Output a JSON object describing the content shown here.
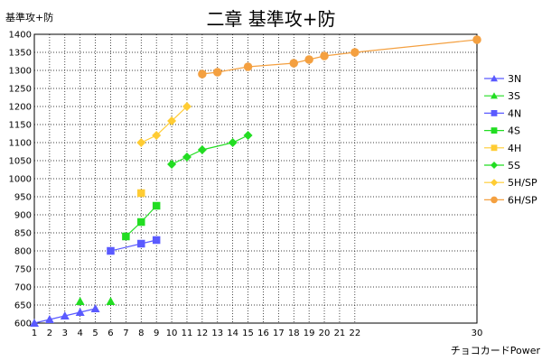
{
  "chart_data": {
    "type": "scatter",
    "title": "二章 基準攻+防",
    "ylabel": "基準攻+防",
    "xlabel": "チョコカードPower",
    "ylim": [
      600,
      1400
    ],
    "y_step": 50,
    "x_ticks": [
      1,
      2,
      3,
      4,
      5,
      6,
      7,
      8,
      9,
      10,
      11,
      12,
      13,
      14,
      15,
      16,
      17,
      18,
      19,
      20,
      21,
      22,
      30
    ],
    "grid": true,
    "legend_position": "right",
    "series": [
      {
        "name": "3N",
        "color": "#5a5aff",
        "marker": "triangle",
        "line": true,
        "points": [
          [
            1,
            600
          ],
          [
            2,
            610
          ],
          [
            3,
            620
          ],
          [
            4,
            630
          ],
          [
            5,
            640
          ]
        ]
      },
      {
        "name": "3S",
        "color": "#22dd22",
        "marker": "triangle",
        "line": false,
        "points": [
          [
            4,
            660
          ],
          [
            6,
            660
          ]
        ]
      },
      {
        "name": "4N",
        "color": "#5a5aff",
        "marker": "square",
        "line": true,
        "points": [
          [
            6,
            800
          ],
          [
            8,
            820
          ],
          [
            9,
            830
          ]
        ]
      },
      {
        "name": "4S",
        "color": "#22dd22",
        "marker": "square",
        "line": true,
        "points": [
          [
            7,
            840
          ],
          [
            8,
            880
          ],
          [
            9,
            925
          ]
        ]
      },
      {
        "name": "4H",
        "color": "#ffcc33",
        "marker": "square",
        "line": false,
        "points": [
          [
            8,
            960
          ]
        ]
      },
      {
        "name": "5S",
        "color": "#22dd22",
        "marker": "diamond",
        "line": true,
        "points": [
          [
            10,
            1040
          ],
          [
            11,
            1060
          ],
          [
            12,
            1080
          ],
          [
            14,
            1100
          ],
          [
            15,
            1120
          ]
        ]
      },
      {
        "name": "5H/SP",
        "color": "#ffcc33",
        "marker": "diamond",
        "line": true,
        "points": [
          [
            8,
            1100
          ],
          [
            9,
            1120
          ],
          [
            10,
            1160
          ],
          [
            11,
            1200
          ]
        ]
      },
      {
        "name": "6H/SP",
        "color": "#f4a040",
        "marker": "circle",
        "line": true,
        "points": [
          [
            12,
            1290
          ],
          [
            13,
            1295
          ],
          [
            15,
            1310
          ],
          [
            18,
            1320
          ],
          [
            19,
            1330
          ],
          [
            20,
            1340
          ],
          [
            22,
            1350
          ],
          [
            30,
            1385
          ]
        ]
      }
    ]
  }
}
